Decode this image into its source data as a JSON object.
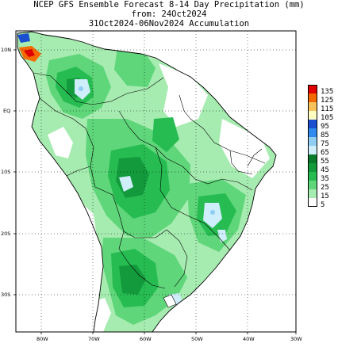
{
  "title": {
    "line1": "NCEP GFS Ensemble Forecast 8-14 Day Precipitation (mm)",
    "line2": "from: 24Oct2024",
    "line3": "31Oct2024-06Nov2024 Accumulation"
  },
  "axes": {
    "lat_labels": [
      "10N",
      "EQ",
      "10S",
      "20S",
      "30S"
    ],
    "lon_labels": [
      "80W",
      "70W",
      "60W",
      "50W",
      "40W",
      "30W"
    ]
  },
  "legend": {
    "levels": [
      {
        "label": "135",
        "color": "#e00000"
      },
      {
        "label": "125",
        "color": "#f56a00"
      },
      {
        "label": "115",
        "color": "#f9c25a"
      },
      {
        "label": "105",
        "color": "#fdfdc0"
      },
      {
        "label": "95",
        "color": "#1b4fcf"
      },
      {
        "label": "85",
        "color": "#2f8bf0"
      },
      {
        "label": "75",
        "color": "#8fcdf2"
      },
      {
        "label": "65",
        "color": "#cdeefa"
      },
      {
        "label": "55",
        "color": "#0a7a2c"
      },
      {
        "label": "45",
        "color": "#139a3c"
      },
      {
        "label": "35",
        "color": "#27bc52"
      },
      {
        "label": "25",
        "color": "#5fd67a"
      },
      {
        "label": "15",
        "color": "#a6ebb0"
      },
      {
        "label": "5",
        "color": "#ffffff"
      }
    ]
  },
  "colors": {
    "rain_low": "#a6ebb0",
    "rain_mid": "#5fd67a",
    "rain_high": "#27bc52",
    "rain_heavy": "#139a3c",
    "rain_light_blue": "#cdeefa",
    "rain_blue": "#8fcdf2",
    "rain_orange": "#f56a00",
    "rain_red": "#e00000"
  }
}
